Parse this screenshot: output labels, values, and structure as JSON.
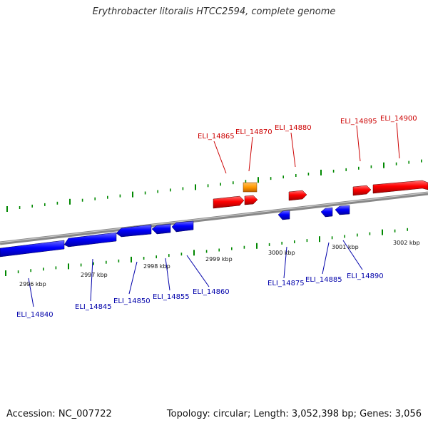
{
  "title": "Erythrobacter litoralis HTCC2594, complete genome",
  "footer": {
    "accession": "Accession: NC_007722",
    "topology": "Topology: circular; Length: 3,052,398 bp; Genes: 3,056"
  },
  "colors": {
    "forward": "#ff0000",
    "reverse": "#0000ff",
    "rna": "#ff9900",
    "backbone": "#888888",
    "ticks": "#008800",
    "forward_label": "#cc0000",
    "reverse_label": "#0000aa"
  },
  "scale_labels": [
    "2996 kbp",
    "2997 kbp",
    "2998 kbp",
    "2999 kbp",
    "3000 kbp",
    "3001 kbp",
    "3002 kbp"
  ],
  "genes": {
    "forward": [
      "ELI_14865",
      "ELI_14870",
      "ELI_14880",
      "ELI_14895",
      "ELI_14900"
    ],
    "reverse": [
      "ELI_14840",
      "ELI_14845",
      "ELI_14850",
      "ELI_14855",
      "ELI_14860",
      "ELI_14875",
      "ELI_14885",
      "ELI_14890"
    ]
  }
}
